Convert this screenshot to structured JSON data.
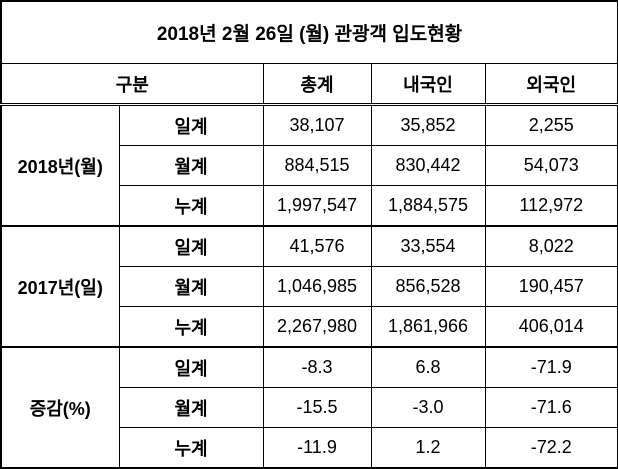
{
  "title": "2018년 2월 26일 (월) 관광객 입도현황",
  "header": [
    "구분",
    "총계",
    "내국인",
    "외국인"
  ],
  "groups": [
    {
      "label": "2018년(월)",
      "rows": [
        {
          "label": "일계",
          "values": [
            "38,107",
            "35,852",
            "2,255"
          ]
        },
        {
          "label": "월계",
          "values": [
            "884,515",
            "830,442",
            "54,073"
          ]
        },
        {
          "label": "누계",
          "values": [
            "1,997,547",
            "1,884,575",
            "112,972"
          ]
        }
      ]
    },
    {
      "label": "2017년(일)",
      "rows": [
        {
          "label": "일계",
          "values": [
            "41,576",
            "33,554",
            "8,022"
          ]
        },
        {
          "label": "월계",
          "values": [
            "1,046,985",
            "856,528",
            "190,457"
          ]
        },
        {
          "label": "누계",
          "values": [
            "2,267,980",
            "1,861,966",
            "406,014"
          ]
        }
      ]
    },
    {
      "label": "증감(%)",
      "rows": [
        {
          "label": "일계",
          "values": [
            "-8.3",
            "6.8",
            "-71.9"
          ]
        },
        {
          "label": "월계",
          "values": [
            "-15.5",
            "-3.0",
            "-71.6"
          ]
        },
        {
          "label": "누계",
          "values": [
            "-11.9",
            "1.2",
            "-72.2"
          ]
        }
      ]
    }
  ]
}
